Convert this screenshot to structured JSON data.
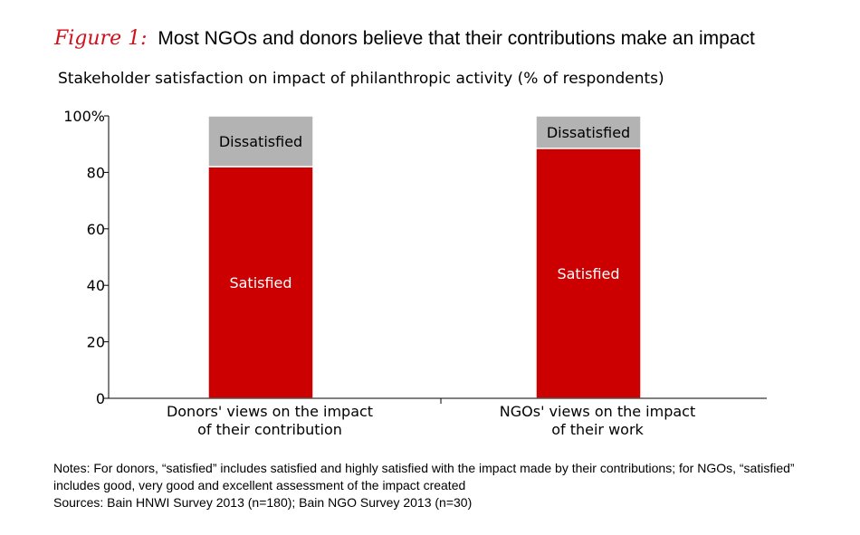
{
  "figure": {
    "label": "Figure 1:",
    "title": "Most NGOs and donors believe that their contributions make an impact"
  },
  "chart_data": {
    "type": "bar",
    "stacked": true,
    "title": "Stakeholder satisfaction on impact of philanthropic activity (% of respondents)",
    "categories": [
      [
        "Donors' views on the impact",
        "of their contribution"
      ],
      [
        "NGOs' views on the impact",
        "of their work"
      ]
    ],
    "series": [
      {
        "name": "Satisfied",
        "values": [
          82,
          88.5
        ],
        "color": "#cc0000",
        "label_color": "#ffffff"
      },
      {
        "name": "Dissatisfied",
        "values": [
          18,
          11.5
        ],
        "color": "#b3b3b3",
        "label_color": "#000000"
      }
    ],
    "ylim": [
      0,
      100
    ],
    "yticks": [
      0,
      20,
      40,
      60,
      80,
      100
    ],
    "ytick_labels": [
      "0",
      "20",
      "40",
      "60",
      "80",
      "100%"
    ],
    "xlabel": "",
    "ylabel": "",
    "grid": false
  },
  "notes": {
    "line1": "Notes: For donors, “satisfied” includes satisfied and highly satisfied with the impact made by their contributions; for NGOs, “satisfied”",
    "line2": "includes good, very good and excellent assessment of the impact created",
    "line3": "Sources: Bain HNWI Survey 2013 (n=180); Bain NGO Survey 2013 (n=30)"
  }
}
